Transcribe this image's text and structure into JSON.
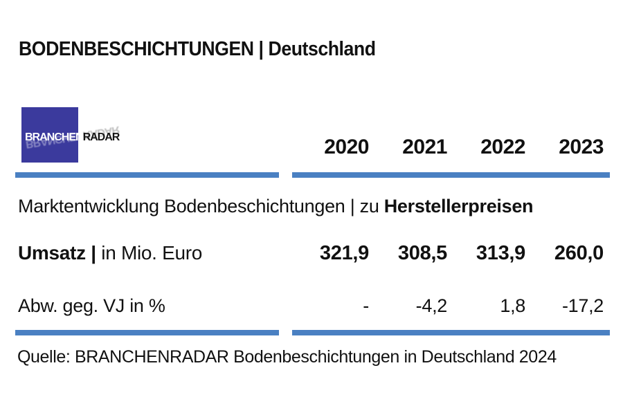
{
  "title": "BODENBESCHICHTUNGEN | Deutschland",
  "logo": {
    "text_white": "BRANCHEN",
    "text_dark": "RADAR"
  },
  "table": {
    "years": [
      "2020",
      "2021",
      "2022",
      "2023"
    ],
    "section": {
      "regular": "Marktentwicklung Bodenbeschichtungen | zu ",
      "bold": "Herstellerpreisen"
    },
    "rows": [
      {
        "label_bold": "Umsatz | ",
        "label_regular": "in Mio. Euro",
        "values": [
          "321,9",
          "308,5",
          "313,9",
          "260,0"
        ]
      },
      {
        "label_bold": "",
        "label_regular": "Abw. geg. VJ in %",
        "values": [
          "-",
          "-4,2",
          "1,8",
          "-17,2"
        ]
      }
    ]
  },
  "source": "Quelle: BRANCHENRADAR Bodenbeschichtungen in Deutschland 2024",
  "colors": {
    "rule_blue": "#4a80c2",
    "logo_blue": "#3b3a9d",
    "text": "#111111"
  },
  "chart_data": {
    "type": "table",
    "title": "BODENBESCHICHTUNGEN | Deutschland",
    "subtitle": "Marktentwicklung Bodenbeschichtungen | zu Herstellerpreisen",
    "categories": [
      "2020",
      "2021",
      "2022",
      "2023"
    ],
    "series": [
      {
        "name": "Umsatz | in Mio. Euro",
        "values": [
          321.9,
          308.5,
          313.9,
          260.0
        ]
      },
      {
        "name": "Abw. geg. VJ in %",
        "values": [
          null,
          -4.2,
          1.8,
          -17.2
        ]
      }
    ],
    "source": "Quelle: BRANCHENRADAR Bodenbeschichtungen in Deutschland 2024"
  }
}
